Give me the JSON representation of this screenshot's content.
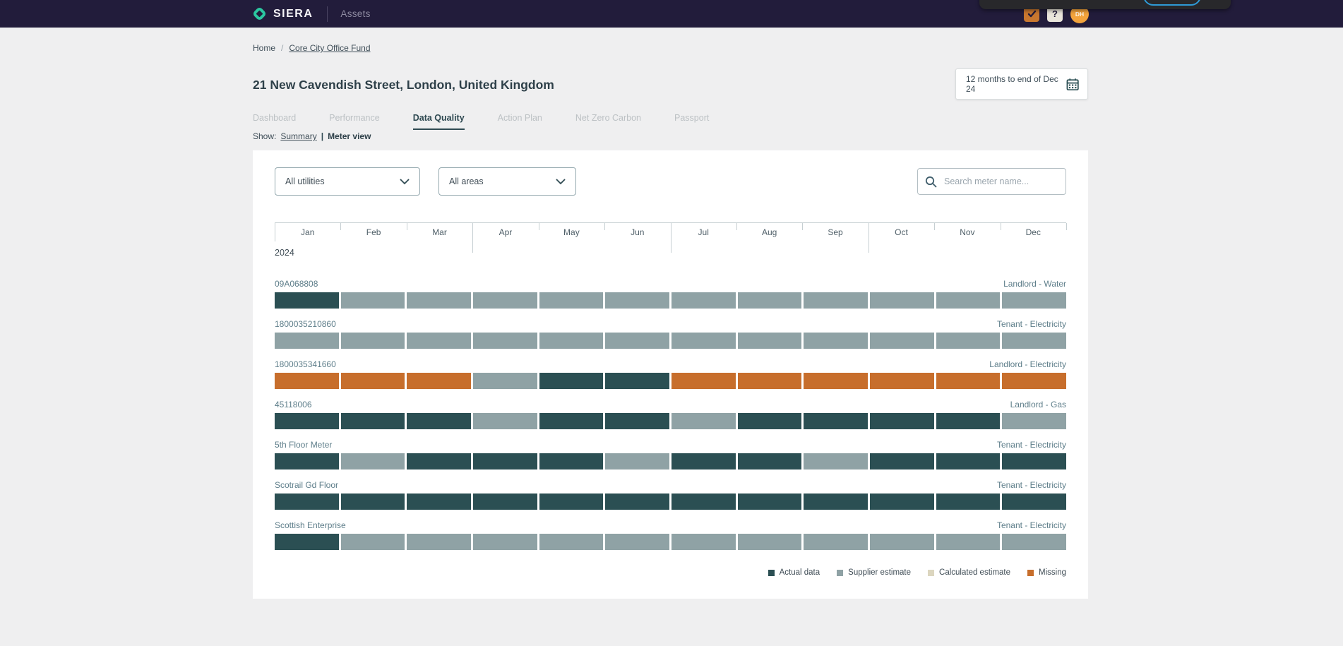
{
  "topbar": {
    "brand": "SIERA",
    "product": "Assets",
    "help_label": "?",
    "avatar_initials": "DH"
  },
  "breadcrumb": {
    "home": "Home",
    "separator": "/",
    "current": "Core City Office Fund"
  },
  "page": {
    "title": "21 New Cavendish Street, London, United Kingdom"
  },
  "date_picker": {
    "label": "12 months to end of Dec 24"
  },
  "tabs": [
    {
      "label": "Dashboard",
      "active": false
    },
    {
      "label": "Performance",
      "active": false
    },
    {
      "label": "Data Quality",
      "active": true
    },
    {
      "label": "Action Plan",
      "active": false
    },
    {
      "label": "Net Zero Carbon",
      "active": false
    },
    {
      "label": "Passport",
      "active": false
    }
  ],
  "show_toggle": {
    "prefix": "Show:",
    "divider": "|",
    "options": [
      {
        "label": "Summary",
        "active": false
      },
      {
        "label": "Meter view",
        "active": true
      }
    ]
  },
  "filters": {
    "utilities_label": "All utilities",
    "areas_label": "All areas",
    "search_placeholder": "Search meter name..."
  },
  "grid": {
    "year": "2024",
    "months": [
      "Jan",
      "Feb",
      "Mar",
      "Apr",
      "May",
      "Jun",
      "Jul",
      "Aug",
      "Sep",
      "Oct",
      "Nov",
      "Dec"
    ],
    "meters": [
      {
        "name": "09A068808",
        "type": "Landlord - Water",
        "cells": [
          "actual",
          "supplier",
          "supplier",
          "supplier",
          "supplier",
          "supplier",
          "supplier",
          "supplier",
          "supplier",
          "supplier",
          "supplier",
          "supplier"
        ]
      },
      {
        "name": "1800035210860",
        "type": "Tenant - Electricity",
        "cells": [
          "supplier",
          "supplier",
          "supplier",
          "supplier",
          "supplier",
          "supplier",
          "supplier",
          "supplier",
          "supplier",
          "supplier",
          "supplier",
          "supplier"
        ]
      },
      {
        "name": "1800035341660",
        "type": "Landlord - Electricity",
        "cells": [
          "missing",
          "missing",
          "missing",
          "supplier",
          "actual",
          "actual",
          "missing",
          "missing",
          "missing",
          "missing",
          "missing",
          "missing"
        ]
      },
      {
        "name": "45118006",
        "type": "Landlord - Gas",
        "cells": [
          "actual",
          "actual",
          "actual",
          "supplier",
          "actual",
          "actual",
          "supplier",
          "actual",
          "actual",
          "actual",
          "actual",
          "supplier"
        ]
      },
      {
        "name": "5th Floor Meter",
        "type": "Tenant - Electricity",
        "cells": [
          "actual",
          "supplier",
          "actual",
          "actual",
          "actual",
          "supplier",
          "actual",
          "actual",
          "supplier",
          "actual",
          "actual",
          "actual"
        ]
      },
      {
        "name": "Scotrail Gd Floor",
        "type": "Tenant - Electricity",
        "cells": [
          "actual",
          "actual",
          "actual",
          "actual",
          "actual",
          "actual",
          "actual",
          "actual",
          "actual",
          "actual",
          "actual",
          "actual"
        ]
      },
      {
        "name": "Scottish Enterprise",
        "type": "Tenant - Electricity",
        "cells": [
          "actual",
          "supplier",
          "supplier",
          "supplier",
          "supplier",
          "supplier",
          "supplier",
          "supplier",
          "supplier",
          "supplier",
          "supplier",
          "supplier"
        ]
      }
    ]
  },
  "legend": [
    {
      "label": "Actual data",
      "key": "actual"
    },
    {
      "label": "Supplier estimate",
      "key": "supplier"
    },
    {
      "label": "Calculated estimate",
      "key": "calculated"
    },
    {
      "label": "Missing",
      "key": "missing"
    }
  ],
  "colors": {
    "actual": "#2B4F53",
    "supplier": "#8FA2A5",
    "calculated": "#DCD6BF",
    "missing": "#C76E2C",
    "brand_teal": "#2BC7A0",
    "topbar_bg": "#221C3B"
  }
}
